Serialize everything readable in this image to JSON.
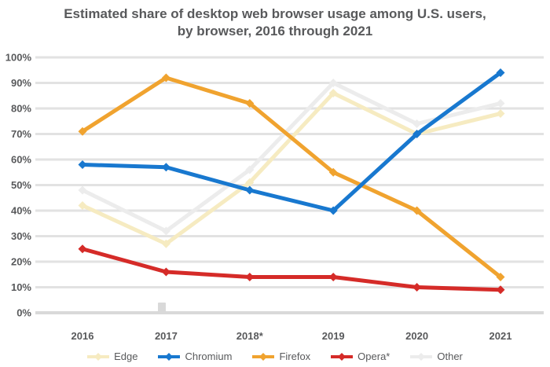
{
  "title": {
    "line1": "Estimated share of desktop web browser usage among U.S. users,",
    "line2": "by browser, 2016 through 2021"
  },
  "colors": {
    "text": "#58595B",
    "grid": "#E2E2E2",
    "axis": "#D9D9D9",
    "background": "#FFFFFF"
  },
  "chart_data": {
    "type": "line",
    "title": "Estimated share of desktop web browser usage among U.S. users, by browser, 2016 through 2021",
    "x": [
      "2016",
      "2017",
      "2018*",
      "2019",
      "2020",
      "2021"
    ],
    "y_tick_labels": [
      "100%",
      "90%",
      "80%",
      "70%",
      "60%",
      "50%",
      "40%",
      "30%",
      "20%",
      "10%",
      "0%"
    ],
    "ylim": [
      0,
      100
    ],
    "grid": true,
    "legend_position": "bottom",
    "series": [
      {
        "name": "Edge",
        "color": "#F6EBC1",
        "z": 2,
        "values": [
          42,
          27,
          51,
          86,
          70,
          78
        ]
      },
      {
        "name": "Chromium",
        "color": "#1878CF",
        "z": 4,
        "values": [
          58,
          57,
          48,
          40,
          70,
          94
        ]
      },
      {
        "name": "Firefox",
        "color": "#F0A32F",
        "z": 3,
        "values": [
          71,
          92,
          82,
          55,
          40,
          14
        ]
      },
      {
        "name": "Opera*",
        "color": "#D52B28",
        "z": 5,
        "values": [
          25,
          16,
          14,
          14,
          10,
          9
        ]
      },
      {
        "name": "Other",
        "color": "#ECECEC",
        "z": 1,
        "values": [
          48,
          32,
          56,
          90,
          74,
          82
        ]
      }
    ]
  }
}
